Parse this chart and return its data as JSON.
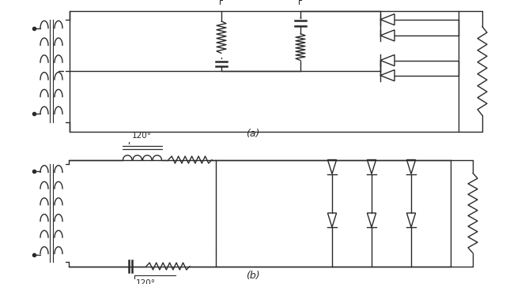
{
  "bg_color": "#ffffff",
  "line_color": "#2a2a2a",
  "lw": 1.0,
  "title_a": "(a)",
  "title_b": "(b)"
}
